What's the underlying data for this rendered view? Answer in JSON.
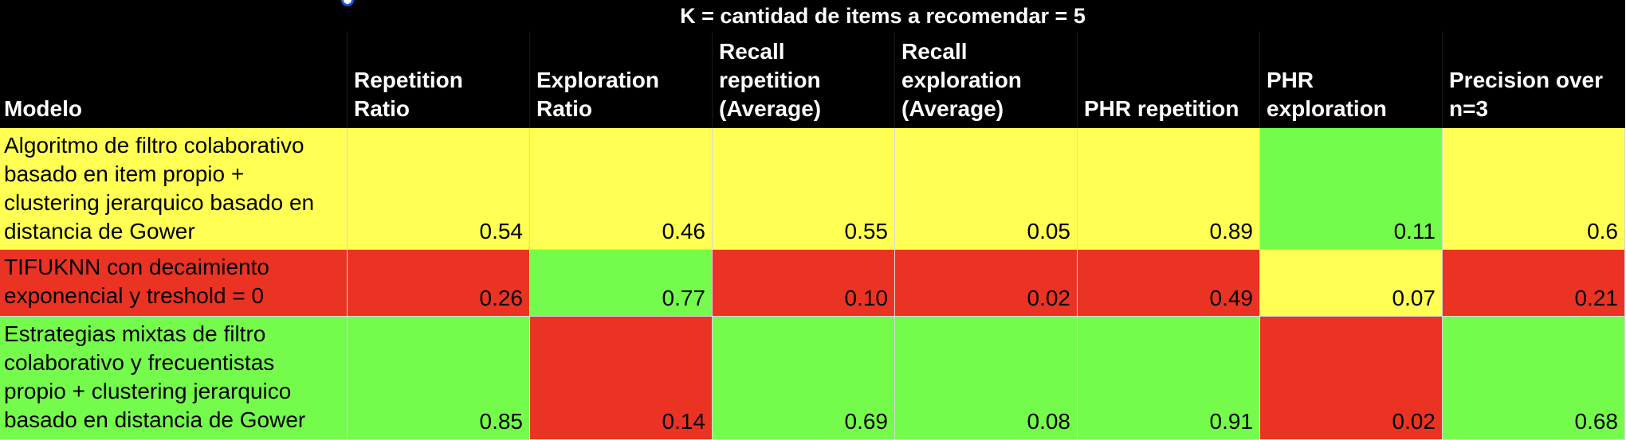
{
  "title": "K = cantidad de items a recomendar = 5",
  "headers": [
    "Modelo",
    "Repetition Ratio",
    "Exploration Ratio",
    "Recall repetition (Average)",
    "Recall exploration (Average)",
    "PHR repetition",
    "PHR exploration",
    "Precision over n=3"
  ],
  "colors": {
    "yellow": "#ffff54",
    "green": "#75fb4c",
    "red": "#ea3323"
  },
  "rows": [
    {
      "model": "Algoritmo de filtro colaborativo basado en item propio + clustering jerarquico basado en distancia de Gower",
      "values": [
        "0.54",
        "0.46",
        "0.55",
        "0.05",
        "0.89",
        "0.11",
        "0.6"
      ],
      "fills": [
        "yellow",
        "yellow",
        "yellow",
        "yellow",
        "yellow",
        "yellow",
        "green",
        "yellow"
      ]
    },
    {
      "model": "TIFUKNN con decaimiento exponencial y treshold = 0",
      "values": [
        "0.26",
        "0.77",
        "0.10",
        "0.02",
        "0.49",
        "0.07",
        "0.21"
      ],
      "fills": [
        "red",
        "red",
        "green",
        "red",
        "red",
        "red",
        "yellow",
        "red"
      ]
    },
    {
      "model": "Estrategias mixtas de filtro colaborativo y frecuentistas propio + clustering jerarquico basado en distancia de Gower",
      "values": [
        "0.85",
        "0.14",
        "0.69",
        "0.08",
        "0.91",
        "0.02",
        "0.68"
      ],
      "fills": [
        "green",
        "green",
        "red",
        "green",
        "green",
        "green",
        "red",
        "green"
      ]
    }
  ]
}
